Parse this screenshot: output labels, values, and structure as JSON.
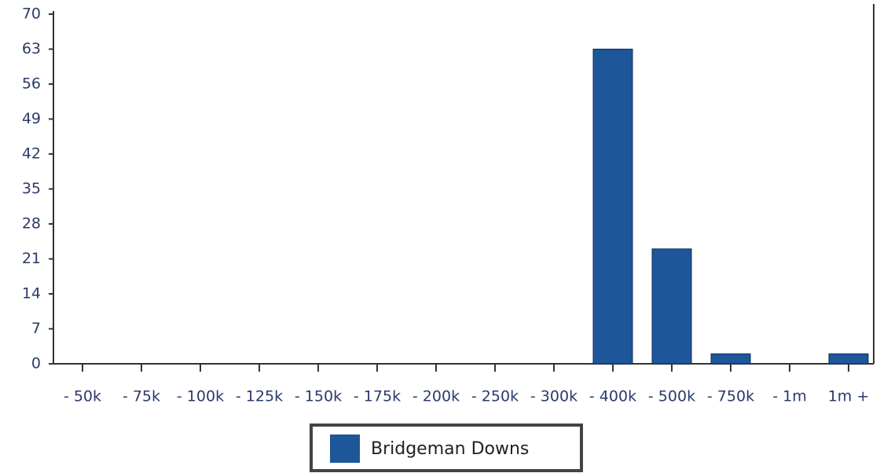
{
  "chart_data": {
    "type": "bar",
    "categories": [
      "- 50k",
      "- 75k",
      "- 100k",
      "- 125k",
      "- 150k",
      "- 175k",
      "- 200k",
      "- 250k",
      "- 300k",
      "- 400k",
      "- 500k",
      "- 750k",
      "- 1m",
      "1m +"
    ],
    "series": [
      {
        "name": "Bridgeman Downs",
        "color": "#1d5699",
        "values": [
          0,
          0,
          0,
          0,
          0,
          0,
          0,
          0,
          0,
          63,
          23,
          2,
          0,
          2
        ]
      }
    ],
    "ylim": [
      0,
      70
    ],
    "yticks": [
      0,
      7,
      14,
      21,
      28,
      35,
      42,
      49,
      56,
      63,
      70
    ],
    "grid": false
  }
}
